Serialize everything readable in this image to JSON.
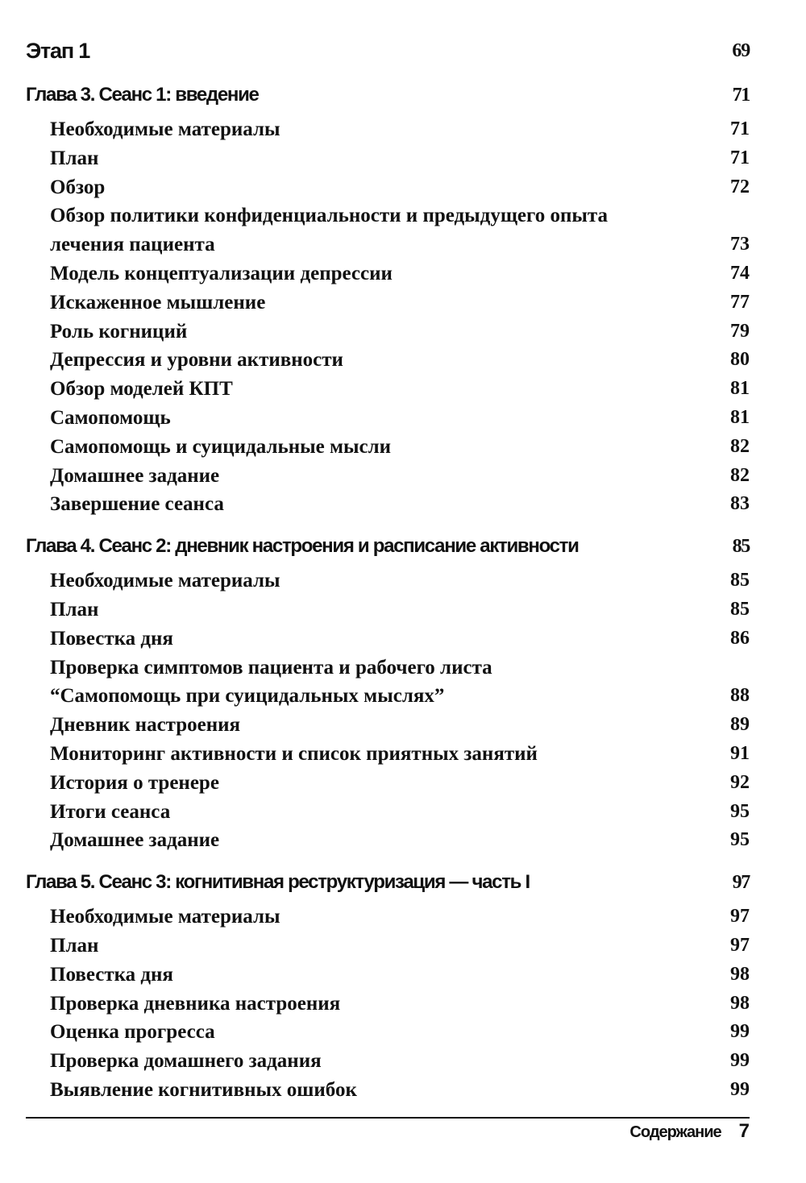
{
  "part": {
    "title": "Этап 1",
    "page": "69"
  },
  "chapters": [
    {
      "title": "Глава 3. Сеанс 1: введение",
      "page": "71",
      "items": [
        {
          "title": "Необходимые материалы",
          "page": "71"
        },
        {
          "title": "План",
          "page": "71"
        },
        {
          "title": "Обзор",
          "page": "72"
        },
        {
          "title": "Обзор политики конфиденциальности и предыдущего опыта лечения пациента",
          "page": "73"
        },
        {
          "title": "Модель концептуализации депрессии",
          "page": "74"
        },
        {
          "title": "Искаженное мышление",
          "page": "77"
        },
        {
          "title": "Роль когниций",
          "page": "79"
        },
        {
          "title": "Депрессия и уровни активности",
          "page": "80"
        },
        {
          "title": "Обзор моделей КПТ",
          "page": "81"
        },
        {
          "title": "Самопомощь",
          "page": "81"
        },
        {
          "title": "Самопомощь и суицидальные мысли",
          "page": "82"
        },
        {
          "title": "Домашнее задание",
          "page": "82"
        },
        {
          "title": "Завершение сеанса",
          "page": "83"
        }
      ]
    },
    {
      "title": "Глава 4. Сеанс 2: дневник настроения и расписание активности",
      "page": "85",
      "items": [
        {
          "title": "Необходимые материалы",
          "page": "85"
        },
        {
          "title": "План",
          "page": "85"
        },
        {
          "title": "Повестка дня",
          "page": "86"
        },
        {
          "title": "Проверка симптомов пациента и рабочего листа “Самопомощь при суицидальных мыслях”",
          "page": "88"
        },
        {
          "title": "Дневник настроения",
          "page": "89"
        },
        {
          "title": "Мониторинг активности и список приятных занятий",
          "page": "91"
        },
        {
          "title": "История о тренере",
          "page": "92"
        },
        {
          "title": "Итоги сеанса",
          "page": "95"
        },
        {
          "title": "Домашнее задание",
          "page": "95"
        }
      ]
    },
    {
      "title": "Глава 5. Сеанс 3: когнитивная реструктуризация — часть I",
      "page": "97",
      "items": [
        {
          "title": "Необходимые материалы",
          "page": "97"
        },
        {
          "title": "План",
          "page": "97"
        },
        {
          "title": "Повестка дня",
          "page": "98"
        },
        {
          "title": "Проверка дневника настроения",
          "page": "98"
        },
        {
          "title": "Оценка прогресса",
          "page": "99"
        },
        {
          "title": "Проверка домашнего задания",
          "page": "99"
        },
        {
          "title": "Выявление когнитивных ошибок",
          "page": "99"
        }
      ]
    }
  ],
  "footer": {
    "label": "Содержание",
    "page": "7"
  }
}
